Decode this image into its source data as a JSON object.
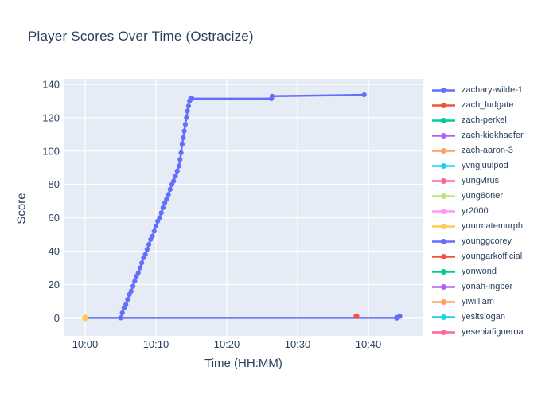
{
  "chart_data": {
    "type": "line",
    "title": "Player Scores Over Time (Ostracize)",
    "xlabel": "Time (HH:MM)",
    "ylabel": "Score",
    "x_axis": {
      "tick_labels": [
        "10:00",
        "10:10",
        "10:20",
        "10:30",
        "10:40"
      ],
      "tick_values_minutes": [
        0,
        10,
        20,
        30,
        40
      ],
      "range_minutes": [
        -2.92,
        47.64
      ],
      "time_base": "10:00"
    },
    "y_axis": {
      "tick_values": [
        0,
        20,
        40,
        60,
        80,
        100,
        120,
        140
      ],
      "range": [
        -10.8,
        143.3
      ]
    },
    "grid": true,
    "legend_position": "right",
    "colors": {
      "paper_bg": "#FFFFFF",
      "plot_bg": "#E5ECF6",
      "grid": "#FFFFFF",
      "font": "#2A3F5F"
    },
    "series": [
      {
        "name": "zachary-wilde-1",
        "color": "#636EFA",
        "line_w": 2.5,
        "marker_r": 3.1,
        "points": [
          [
            5.0,
            0
          ],
          [
            5.25,
            3
          ],
          [
            5.5,
            6
          ],
          [
            5.75,
            8
          ],
          [
            6.0,
            11
          ],
          [
            6.25,
            14
          ],
          [
            6.5,
            16
          ],
          [
            6.75,
            19
          ],
          [
            7.0,
            22
          ],
          [
            7.25,
            25
          ],
          [
            7.5,
            27
          ],
          [
            7.75,
            30
          ],
          [
            8.0,
            33
          ],
          [
            8.25,
            36
          ],
          [
            8.5,
            38
          ],
          [
            8.75,
            41
          ],
          [
            9.0,
            44
          ],
          [
            9.25,
            47
          ],
          [
            9.5,
            49
          ],
          [
            9.75,
            52
          ],
          [
            10.0,
            55
          ],
          [
            10.25,
            58
          ],
          [
            10.5,
            60
          ],
          [
            10.75,
            63
          ],
          [
            11.0,
            66
          ],
          [
            11.25,
            69
          ],
          [
            11.5,
            71
          ],
          [
            11.75,
            74
          ],
          [
            12.0,
            77
          ],
          [
            12.25,
            80
          ],
          [
            12.5,
            82
          ],
          [
            12.75,
            85
          ],
          [
            13.0,
            88
          ],
          [
            13.25,
            91
          ],
          [
            13.4,
            95
          ],
          [
            13.55,
            99
          ],
          [
            13.7,
            104
          ],
          [
            13.85,
            108
          ],
          [
            14.0,
            112
          ],
          [
            14.15,
            116
          ],
          [
            14.3,
            120
          ],
          [
            14.45,
            124
          ],
          [
            14.6,
            127
          ],
          [
            14.75,
            130
          ],
          [
            14.9,
            131.4
          ],
          [
            15.1,
            131.4
          ],
          [
            26.3,
            131.4
          ],
          [
            26.4,
            132.9
          ],
          [
            39.4,
            133.7
          ]
        ]
      },
      {
        "name": "zach_ludgate",
        "color": "#EF553B",
        "line_w": 2.5,
        "marker_r": 3.6,
        "points": [
          [
            38.3,
            1
          ]
        ]
      },
      {
        "name": "zach-perkel",
        "color": "#00CC96",
        "line_w": 2.5,
        "marker_r": 3.4,
        "points": []
      },
      {
        "name": "zach-kiekhaefer",
        "color": "#AB63FA",
        "line_w": 2.5,
        "marker_r": 3.4,
        "points": []
      },
      {
        "name": "zach-aaron-3",
        "color": "#FFA15A",
        "line_w": 2.5,
        "marker_r": 3.4,
        "points": []
      },
      {
        "name": "yvngjuulpod",
        "color": "#19D3F3",
        "line_w": 2.5,
        "marker_r": 3.4,
        "points": []
      },
      {
        "name": "yungvirus",
        "color": "#FF6692",
        "line_w": 2.5,
        "marker_r": 3.4,
        "points": []
      },
      {
        "name": "yung8oner",
        "color": "#B6E880",
        "line_w": 2.5,
        "marker_r": 3.4,
        "points": []
      },
      {
        "name": "yr2000",
        "color": "#FF97FF",
        "line_w": 2.5,
        "marker_r": 3.4,
        "points": []
      },
      {
        "name": "yourmatemurph",
        "color": "#FECB52",
        "line_w": 2.5,
        "marker_r": 4.0,
        "points": [
          [
            0,
            0
          ]
        ]
      },
      {
        "name": "younggcorey",
        "color": "#636EFA",
        "line_w": 2.5,
        "marker_r": 3.4,
        "points": [
          [
            0,
            0
          ],
          [
            44.0,
            0
          ],
          [
            44.4,
            1
          ]
        ]
      },
      {
        "name": "youngarkofficial",
        "color": "#EF553B",
        "line_w": 2.5,
        "marker_r": 3.4,
        "points": []
      },
      {
        "name": "yonwond",
        "color": "#00CC96",
        "line_w": 2.5,
        "marker_r": 3.4,
        "points": []
      },
      {
        "name": "yonah-ingber",
        "color": "#AB63FA",
        "line_w": 2.5,
        "marker_r": 3.4,
        "points": []
      },
      {
        "name": "yiwilliam",
        "color": "#FFA15A",
        "line_w": 2.5,
        "marker_r": 3.4,
        "points": []
      },
      {
        "name": "yesitslogan",
        "color": "#19D3F3",
        "line_w": 2.5,
        "marker_r": 3.4,
        "points": []
      },
      {
        "name": "yeseniafigueroa",
        "color": "#FF6692",
        "line_w": 2.5,
        "marker_r": 3.4,
        "points": []
      }
    ]
  }
}
